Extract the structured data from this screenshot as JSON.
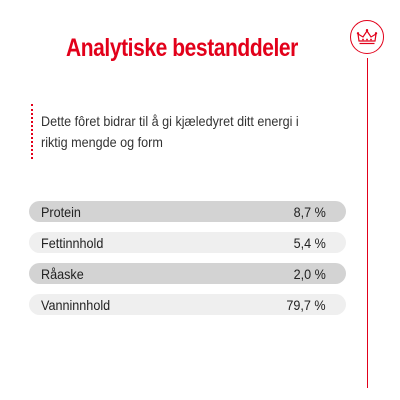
{
  "header": {
    "title": "Analytiske bestanddeler"
  },
  "description": "Dette fôret bidrar til å gi kjæledyret ditt energi i riktig mengde og form",
  "nutrients": [
    {
      "label": "Protein",
      "value": "8,7 %"
    },
    {
      "label": "Fettinnhold",
      "value": "5,4 %"
    },
    {
      "label": "Råaske",
      "value": "2,0 %"
    },
    {
      "label": "Vanninnhold",
      "value": "79,7 %"
    }
  ],
  "colors": {
    "accent": "#e2001a",
    "row_dark": "#d3d3d3",
    "row_light": "#efefef"
  },
  "icons": {
    "brand": "crown-icon"
  }
}
